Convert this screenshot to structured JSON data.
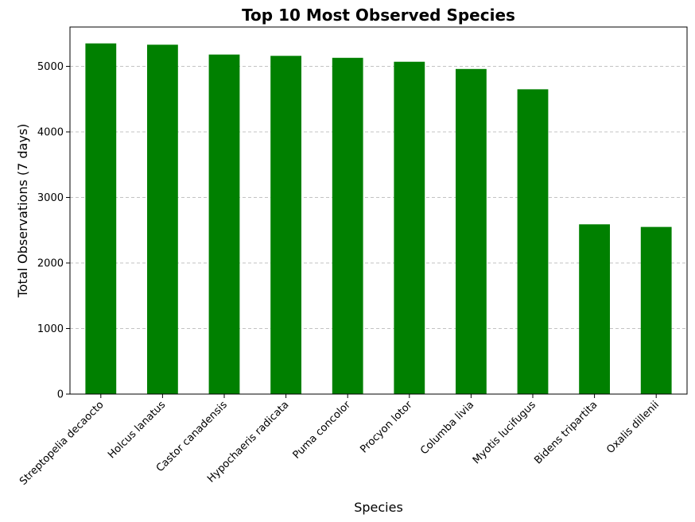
{
  "chart_data": {
    "type": "bar",
    "title": "Top 10 Most Observed Species",
    "xlabel": "Species",
    "ylabel": "Total Observations (7 days)",
    "categories": [
      "Streptopelia decaocto",
      "Holcus lanatus",
      "Castor canadensis",
      "Hypochaeris radicata",
      "Puma concolor",
      "Procyon lotor",
      "Columba livia",
      "Myotis lucifugus",
      "Bidens tripartita",
      "Oxalis dillenii"
    ],
    "values": [
      5350,
      5330,
      5180,
      5160,
      5130,
      5070,
      4960,
      4650,
      2590,
      2550
    ],
    "ylim": [
      0,
      5600
    ],
    "yticks": [
      0,
      1000,
      2000,
      3000,
      4000,
      5000
    ],
    "grid": "y-dashed",
    "bar_color": "#008000"
  }
}
